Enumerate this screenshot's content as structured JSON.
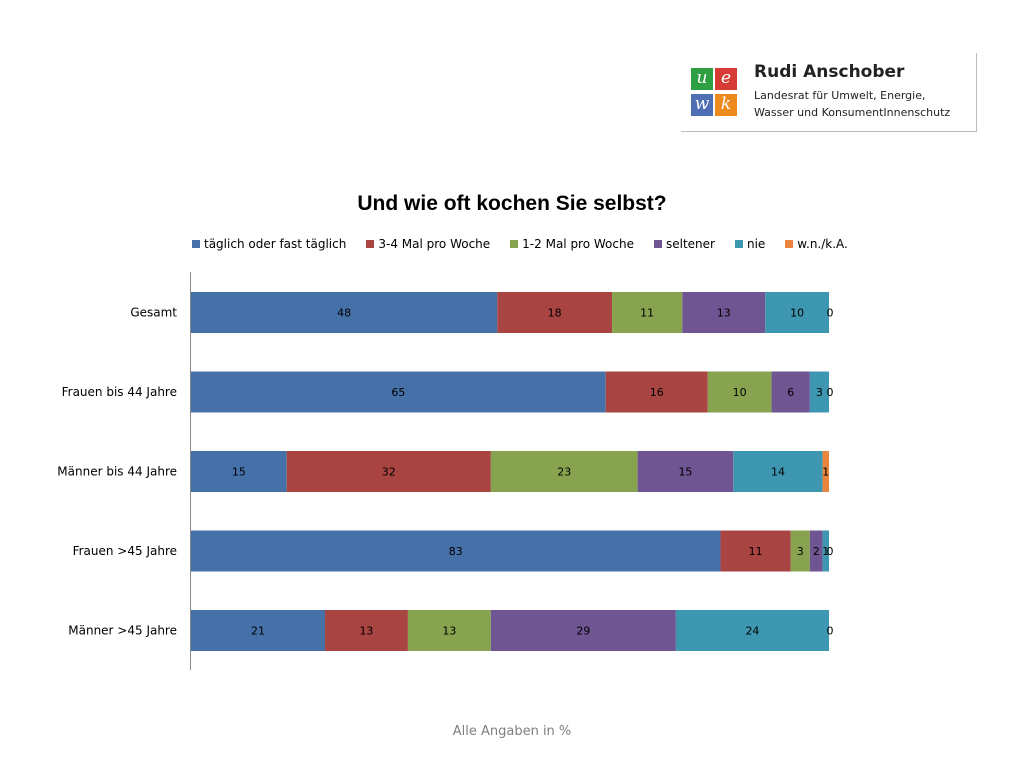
{
  "logo": {
    "tiles": [
      {
        "letter": "u",
        "color": "#2ea043"
      },
      {
        "letter": "e",
        "color": "#d63b36"
      },
      {
        "letter": "w",
        "color": "#4f6fb5"
      },
      {
        "letter": "k",
        "color": "#ec8a1e"
      }
    ],
    "name": "Rudi Anschober",
    "subtitle_line1": "Landesrat für Umwelt, Energie,",
    "subtitle_line2": "Wasser und KonsumentInnenschutz"
  },
  "footnote": "Alle Angaben in %",
  "chart_data": {
    "type": "bar",
    "orientation": "horizontal",
    "stacked": true,
    "title": "Und wie oft kochen Sie selbst?",
    "xlabel": "",
    "ylabel": "",
    "xlim": [
      0,
      100
    ],
    "grid": false,
    "legend_position": "top",
    "categories": [
      "Gesamt",
      "Frauen bis 44 Jahre",
      "Männer bis 44 Jahre",
      "Frauen >45 Jahre",
      "Männer >45 Jahre"
    ],
    "series": [
      {
        "name": "täglich oder fast täglich",
        "color": "#4670a8",
        "values": [
          48,
          65,
          15,
          83,
          21
        ]
      },
      {
        "name": "3-4 Mal pro Woche",
        "color": "#a84442",
        "values": [
          18,
          16,
          32,
          11,
          13
        ]
      },
      {
        "name": "1-2 Mal pro Woche",
        "color": "#87a34f",
        "values": [
          11,
          10,
          23,
          3,
          13
        ]
      },
      {
        "name": "seltener",
        "color": "#6f5592",
        "values": [
          13,
          6,
          15,
          2,
          29
        ]
      },
      {
        "name": "nie",
        "color": "#3d97b0",
        "values": [
          10,
          3,
          14,
          1,
          24
        ]
      },
      {
        "name": "w.n./k.A.",
        "color": "#e8843b",
        "values": [
          0,
          0,
          1,
          0,
          0
        ]
      }
    ]
  }
}
